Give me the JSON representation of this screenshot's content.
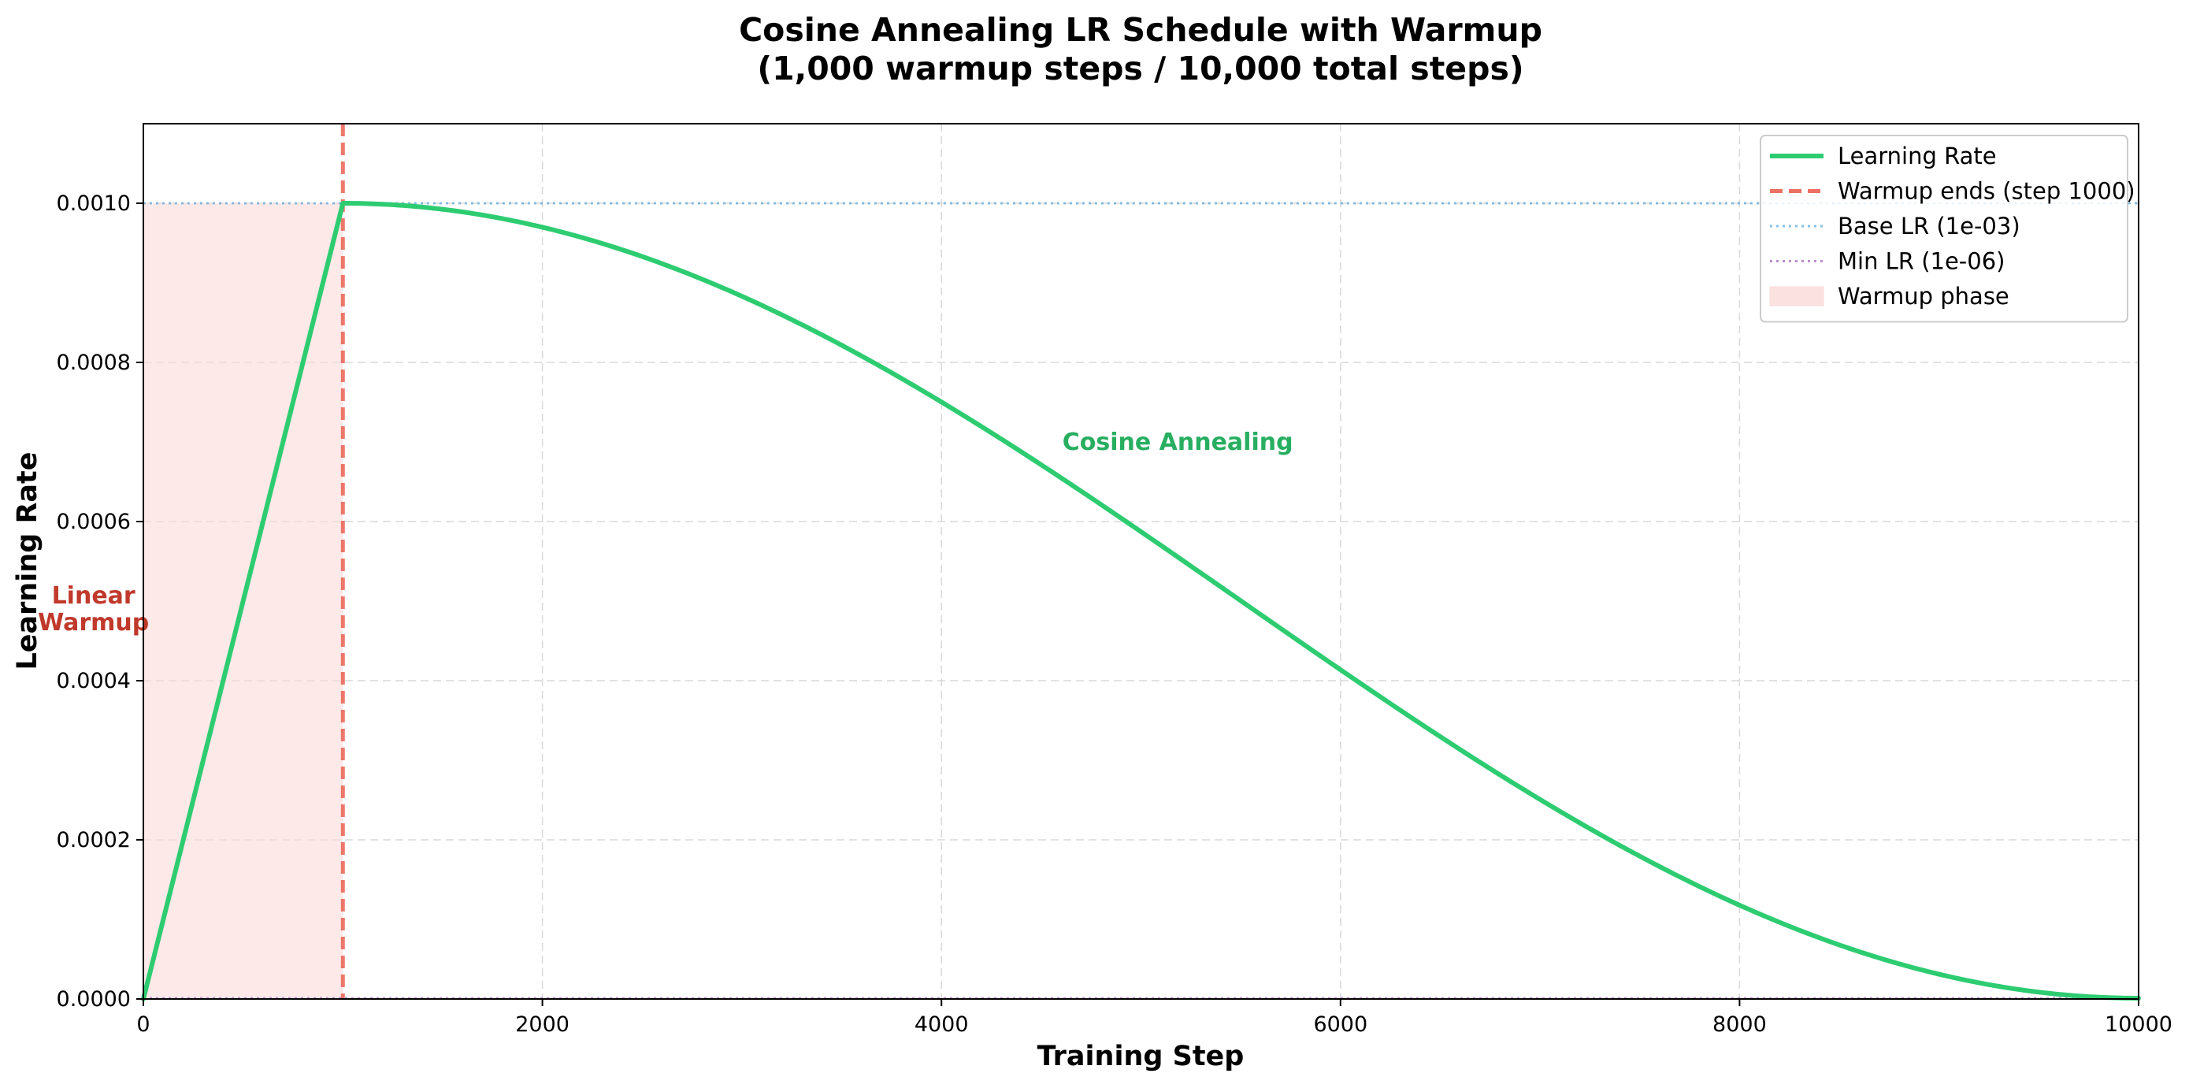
{
  "chart_data": {
    "type": "line",
    "title_lines": [
      "Cosine Annealing LR Schedule with Warmup",
      "(1,000 warmup steps / 10,000 total steps)"
    ],
    "xlabel": "Training Step",
    "ylabel": "Learning Rate",
    "xlim": [
      0,
      10000
    ],
    "ylim": [
      0,
      0.0011
    ],
    "x_ticks": [
      0,
      2000,
      4000,
      6000,
      8000,
      10000
    ],
    "x_tick_labels": [
      "0",
      "2000",
      "4000",
      "6000",
      "8000",
      "10000"
    ],
    "y_ticks": [
      0,
      0.0002,
      0.0004,
      0.0006,
      0.0008,
      0.001
    ],
    "y_tick_labels": [
      "0.0000",
      "0.0002",
      "0.0004",
      "0.0006",
      "0.0008",
      "0.0010"
    ],
    "grid": true,
    "legend_position": "top-right",
    "schedule": {
      "warmup_steps": 1000,
      "total_steps": 10000,
      "base_lr": 0.001,
      "min_lr": 1e-06
    },
    "series": [
      {
        "name": "Learning Rate",
        "style": "solid",
        "color": "#2ecc71",
        "x": [
          0,
          1000,
          1500,
          2000,
          2500,
          3000,
          3500,
          4000,
          4500,
          5000,
          5500,
          6000,
          6500,
          7000,
          7500,
          8000,
          8500,
          9000,
          9500,
          10000
        ],
        "y": [
          0.0,
          0.001,
          0.000992,
          0.00097,
          0.000933,
          0.000883,
          0.000821,
          0.00075,
          0.000671,
          0.000587,
          0.000501,
          0.000414,
          0.00033,
          0.000251,
          0.00018,
          0.000118,
          6.77e-05,
          3.11e-05,
          8.6e-06,
          1e-06
        ]
      }
    ],
    "reference_lines": [
      {
        "name": "Warmup ends (step 1000)",
        "orientation": "vertical",
        "value": 1000,
        "style": "dashed",
        "color": "#e74c3c"
      },
      {
        "name": "Base LR (1e-03)",
        "orientation": "horizontal",
        "value": 0.001,
        "style": "dotted",
        "color": "#3498db"
      },
      {
        "name": "Min LR (1e-06)",
        "orientation": "horizontal",
        "value": 1e-06,
        "style": "dotted",
        "color": "#8e44ad"
      }
    ],
    "regions": [
      {
        "name": "Warmup phase",
        "x_start": 0,
        "x_end": 1000,
        "color": "#fadbd8"
      }
    ],
    "annotations": [
      {
        "lines": [
          "Linear",
          "Warmup"
        ],
        "x": 500,
        "y": 0.00049,
        "color": "#c0392b"
      },
      {
        "lines": [
          "Cosine Annealing"
        ],
        "x": 5500,
        "y": 0.0007,
        "color": "#27ae60"
      }
    ]
  }
}
